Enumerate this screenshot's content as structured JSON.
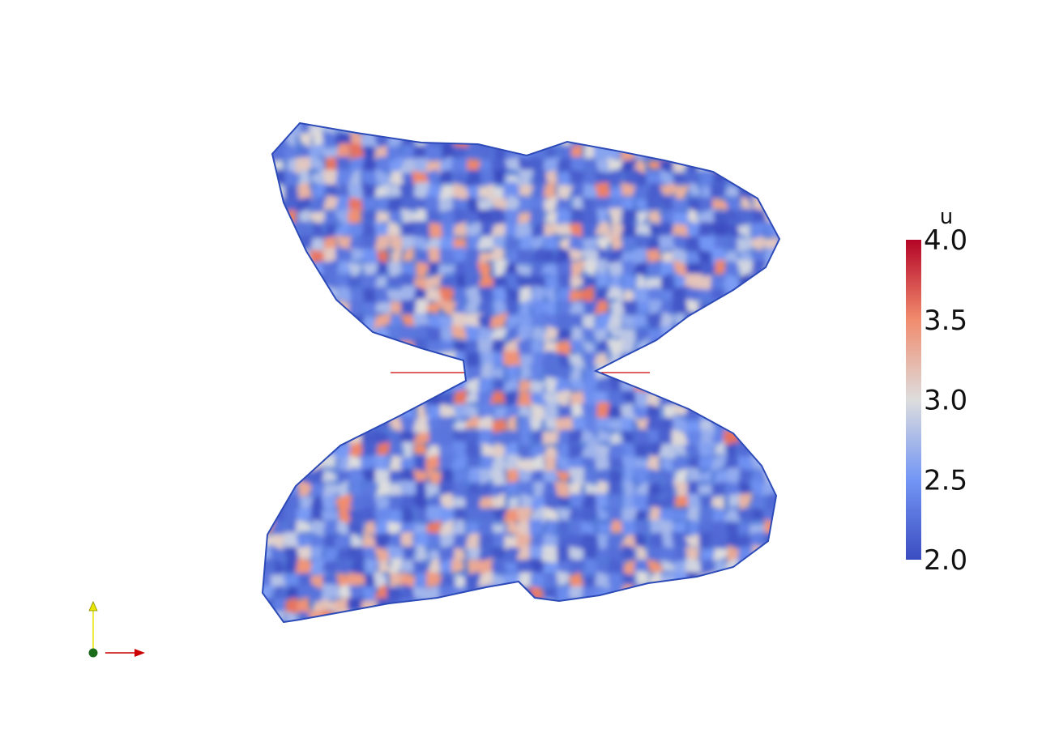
{
  "chart_data": {
    "type": "heatmap",
    "scalar_name": "u",
    "range": [
      2.0,
      4.0
    ],
    "colorbar": {
      "title": "u",
      "tick_labels": [
        "4.0",
        "3.5",
        "3.0",
        "2.5",
        "2.0"
      ],
      "tick_values": [
        4.0,
        3.5,
        3.0,
        2.5,
        2.0
      ],
      "colormap": "cool-to-warm",
      "colors": {
        "low": "#3b4cc0",
        "mid_low": "#7396f5",
        "mid": "#dddddd",
        "mid_high": "#f18c6e",
        "high": "#b40426"
      },
      "placement": "right"
    },
    "field_shape": "butterfly"
  },
  "orientation_axes": {
    "x_color": "#cc0000",
    "y_color": "#e6e600",
    "origin_color": "#1a6b1a"
  },
  "scene_colors": {
    "background": "#ffffff",
    "center_line": "#cc0000"
  }
}
